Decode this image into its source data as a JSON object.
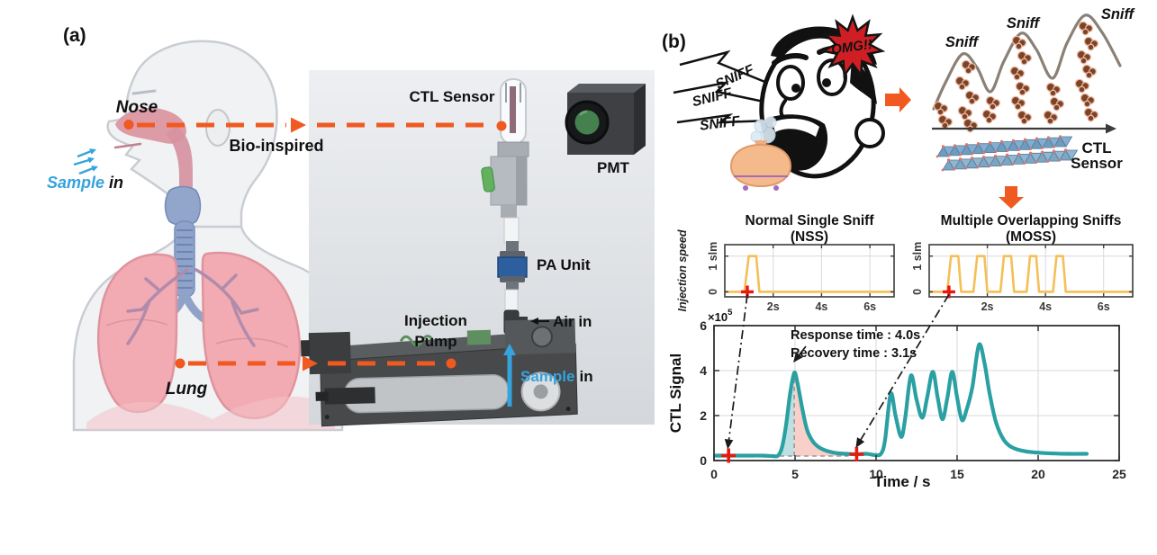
{
  "panel_a": {
    "tag": "(a)",
    "nose_label": "Nose",
    "sample_word": "Sample",
    "in_word": "in",
    "bio_inspired_label": "Bio-inspired",
    "lung_label": "Lung",
    "ctl_sensor_label": "CTL Sensor",
    "pmt_label": "PMT",
    "pa_unit_label": "PA Unit",
    "injection_pump_line1": "Injection",
    "injection_pump_line2": "Pump",
    "air_in_label": "Air in",
    "pump_sample_word": "Sample",
    "pump_in_word": "in"
  },
  "panel_b": {
    "tag": "(b)",
    "omg_label": "OMG!!",
    "sniff_shout_1": "SNIFF",
    "sniff_shout_2": "SNIFF",
    "sniff_shout_3": "SNIFF",
    "sniff_peak_1": "Sniff",
    "sniff_peak_2": "Sniff",
    "sniff_peak_3": "Sniff",
    "sensor_label_line1": "CTL",
    "sensor_label_line2": "Sensor"
  },
  "colors": {
    "accent_orange": "#f0591f",
    "teal_curve": "#2aa0a2",
    "pulse_orange": "#f5bf57",
    "marker_red": "#e8190f",
    "sample_blue": "#35a3dd",
    "fill_rise": "#bfe0e2",
    "fill_decay": "#f8d0c9",
    "grid_gray": "#d9d9d9",
    "axis_dark": "#3c3c3c",
    "sniff_curve_brown": "#8b8075",
    "lattice_blue": "#6f9cbd",
    "omg_red": "#cf1f24",
    "omg_yellow": "#ffd900"
  },
  "chart_data": [
    {
      "id": "nss",
      "type": "line",
      "title": "Normal Single Sniff",
      "subtitle": "(NSS)",
      "ylabel": "Injection speed",
      "yticks": [
        0,
        1
      ],
      "ytick_labels": [
        "0",
        "1 slm"
      ],
      "xticks": [
        2,
        4,
        6
      ],
      "xtick_labels": [
        "2s",
        "4s",
        "6s"
      ],
      "xlim": [
        0,
        7
      ],
      "ylim": [
        -0.14,
        1.32
      ],
      "grid": true,
      "legend_position": "none",
      "series": [
        {
          "name": "injection-speed",
          "color": "#f5bf57",
          "x": [
            0,
            0.81,
            0.99,
            1.3,
            1.43,
            7
          ],
          "y": [
            0,
            0,
            1,
            1,
            0,
            0
          ]
        }
      ],
      "marker": {
        "x": 0.93,
        "y": 0,
        "symbol": "+",
        "color": "#e8190f"
      }
    },
    {
      "id": "moss",
      "type": "line",
      "title": "Multiple Overlapping Sniffs",
      "subtitle": "(MOSS)",
      "ylabel": "Injection speed",
      "yticks": [
        0,
        1
      ],
      "ytick_labels": [
        "0",
        "1 slm"
      ],
      "xticks": [
        2,
        4,
        6
      ],
      "xtick_labels": [
        "2s",
        "4s",
        "6s"
      ],
      "xlim": [
        0,
        7
      ],
      "ylim": [
        -0.14,
        1.32
      ],
      "grid": true,
      "legend_position": "none",
      "series": [
        {
          "name": "injection-speed",
          "color": "#f5bf57",
          "x": [
            0,
            0.62,
            0.75,
            1.0,
            1.1,
            1.52,
            1.65,
            1.9,
            2.0,
            2.45,
            2.57,
            2.82,
            2.92,
            3.35,
            3.47,
            3.68,
            3.78,
            4.26,
            4.38,
            4.6,
            4.7,
            7
          ],
          "y": [
            0,
            0,
            1,
            1,
            0,
            0,
            1,
            1,
            0,
            0,
            1,
            1,
            0,
            0,
            1,
            1,
            0,
            0,
            1,
            1,
            0,
            0
          ]
        }
      ],
      "marker": {
        "x": 0.68,
        "y": 0,
        "symbol": "+",
        "color": "#e8190f"
      }
    },
    {
      "id": "main",
      "type": "line",
      "title": "",
      "xlabel": "Time / s",
      "ylabel": "CTL Signal",
      "y_scale_base": "×10",
      "y_scale_exp": "5",
      "xticks": [
        0,
        5,
        10,
        15,
        20,
        25
      ],
      "yticks": [
        0,
        2,
        4,
        6
      ],
      "xlim": [
        0,
        25
      ],
      "ylim": [
        0,
        6
      ],
      "grid": true,
      "legend_position": "none",
      "annotations": [
        "Response time : 4.0s",
        "Recovery time : 3.1s"
      ],
      "response_peak": {
        "x": 4.95,
        "y": 3.9
      },
      "baseline_level": 0.2,
      "markers": [
        {
          "x": 0.9,
          "y": 0.22,
          "symbol": "+",
          "color": "#e8190f"
        },
        {
          "x": 8.8,
          "y": 0.28,
          "symbol": "+",
          "color": "#e8190f"
        }
      ],
      "fill_regions": {
        "rise": [
          3.6,
          4.95
        ],
        "decay": [
          4.95,
          8.2
        ],
        "rise_color": "#bfe0e2",
        "decay_color": "#f8d0c9"
      },
      "series": [
        {
          "name": "ctl-signal",
          "color": "#2aa0a2",
          "points": [
            [
              0.1,
              0.22
            ],
            [
              1,
              0.22
            ],
            [
              2,
              0.22
            ],
            [
              3,
              0.22
            ],
            [
              3.6,
              0.2
            ],
            [
              3.95,
              0.22
            ],
            [
              4.2,
              0.6
            ],
            [
              4.45,
              1.6
            ],
            [
              4.7,
              3.0
            ],
            [
              4.95,
              3.9
            ],
            [
              5.15,
              3.45
            ],
            [
              5.45,
              2.3
            ],
            [
              5.75,
              1.35
            ],
            [
              6.1,
              0.85
            ],
            [
              6.5,
              0.58
            ],
            [
              7.0,
              0.42
            ],
            [
              7.6,
              0.33
            ],
            [
              8.2,
              0.3
            ],
            [
              8.8,
              0.28
            ],
            [
              9.4,
              0.3
            ],
            [
              9.9,
              0.25
            ],
            [
              10.3,
              0.3
            ],
            [
              10.55,
              0.9
            ],
            [
              10.9,
              2.97
            ],
            [
              11.2,
              2.0
            ],
            [
              11.55,
              1.05
            ],
            [
              11.8,
              1.9
            ],
            [
              12.15,
              3.78
            ],
            [
              12.5,
              2.7
            ],
            [
              12.85,
              1.9
            ],
            [
              13.15,
              2.8
            ],
            [
              13.5,
              3.95
            ],
            [
              13.8,
              2.8
            ],
            [
              14.1,
              1.84
            ],
            [
              14.4,
              2.8
            ],
            [
              14.7,
              3.95
            ],
            [
              15.0,
              2.8
            ],
            [
              15.3,
              1.8
            ],
            [
              15.6,
              2.3
            ],
            [
              15.95,
              3.3
            ],
            [
              16.35,
              5.15
            ],
            [
              16.7,
              4.3
            ],
            [
              17.0,
              3.0
            ],
            [
              17.4,
              1.7
            ],
            [
              17.9,
              0.9
            ],
            [
              18.5,
              0.55
            ],
            [
              19.3,
              0.4
            ],
            [
              20.5,
              0.33
            ],
            [
              21.8,
              0.3
            ],
            [
              23.0,
              0.3
            ]
          ]
        }
      ]
    }
  ]
}
